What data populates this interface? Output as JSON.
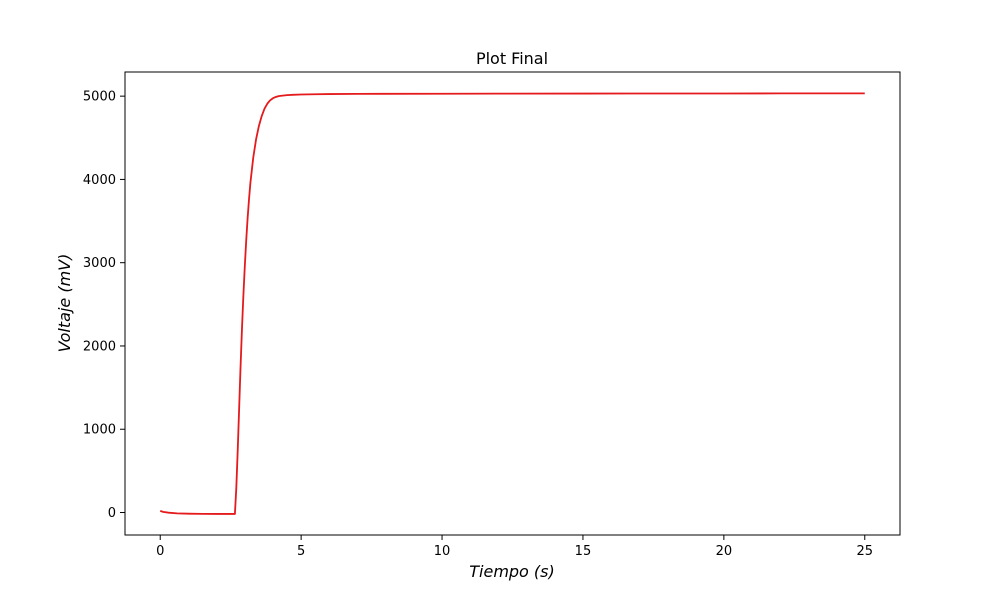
{
  "chart_data": {
    "type": "line",
    "title": "Plot Final",
    "xlabel": "Tiempo (s)",
    "ylabel": "Voltaje (mV)",
    "xlim": [
      -1.25,
      26.25
    ],
    "ylim": [
      -270,
      5290
    ],
    "xticks": [
      0,
      5,
      10,
      15,
      20,
      25
    ],
    "yticks": [
      0,
      1000,
      2000,
      3000,
      4000,
      5000
    ],
    "x_tick_labels": [
      "0",
      "5",
      "10",
      "15",
      "20",
      "25"
    ],
    "y_tick_labels": [
      "0",
      "1000",
      "2000",
      "3000",
      "4000",
      "5000"
    ],
    "grid": false,
    "legend": "none",
    "series": [
      {
        "color": "#e41a1c",
        "x": [
          0,
          0.1,
          0.3,
          0.6,
          1.0,
          1.5,
          2.0,
          2.4,
          2.65,
          2.7,
          2.75,
          2.8,
          2.85,
          2.9,
          2.95,
          3.0,
          3.05,
          3.1,
          3.15,
          3.2,
          3.3,
          3.4,
          3.5,
          3.6,
          3.7,
          3.8,
          3.9,
          4.0,
          4.1,
          4.2,
          4.3,
          4.5,
          4.7,
          5.0,
          5.5,
          6.0,
          7.0,
          8.0,
          10.0,
          12.0,
          15.0,
          18.0,
          20.0,
          22.0,
          25.0
        ],
        "y": [
          20,
          8,
          -2,
          -10,
          -14,
          -16,
          -17,
          -17,
          -17,
          300,
          750,
          1250,
          1750,
          2200,
          2600,
          2950,
          3260,
          3530,
          3760,
          3960,
          4260,
          4480,
          4640,
          4760,
          4850,
          4910,
          4950,
          4975,
          4990,
          5000,
          5005,
          5012,
          5016,
          5020,
          5023,
          5025,
          5027,
          5028,
          5029,
          5030,
          5031,
          5032,
          5032,
          5033,
          5033
        ]
      }
    ]
  }
}
